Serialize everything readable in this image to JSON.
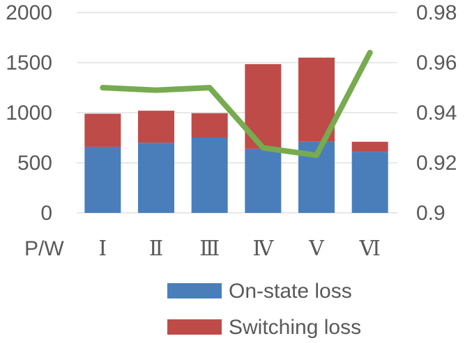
{
  "chart_data": {
    "type": "bar",
    "stacked": true,
    "categories": [
      "Ⅰ",
      "Ⅱ",
      "Ⅲ",
      "Ⅳ",
      "Ⅴ",
      "Ⅵ"
    ],
    "series": [
      {
        "name": "On-state loss",
        "type": "bar",
        "axis": "left",
        "color": "#4a7ebb",
        "values": [
          660,
          700,
          750,
          640,
          710,
          610
        ]
      },
      {
        "name": "Switching loss",
        "type": "bar",
        "axis": "left",
        "color": "#be4b48",
        "values": [
          330,
          320,
          245,
          845,
          840,
          100
        ]
      },
      {
        "type": "line",
        "axis": "right",
        "color": "#77ab4f",
        "values": [
          0.95,
          0.949,
          0.95,
          0.926,
          0.923,
          0.964
        ]
      }
    ],
    "ylabel": "P/W",
    "ylim": [
      0,
      2000
    ],
    "yticks": [
      "0",
      "500",
      "1000",
      "1500",
      "2000"
    ],
    "y2lim": [
      0.9,
      0.98
    ],
    "y2ticks": [
      "0.9",
      "0.92",
      "0.94",
      "0.96",
      "0.98"
    ],
    "grid": true,
    "legend_position": "bottom-right"
  }
}
